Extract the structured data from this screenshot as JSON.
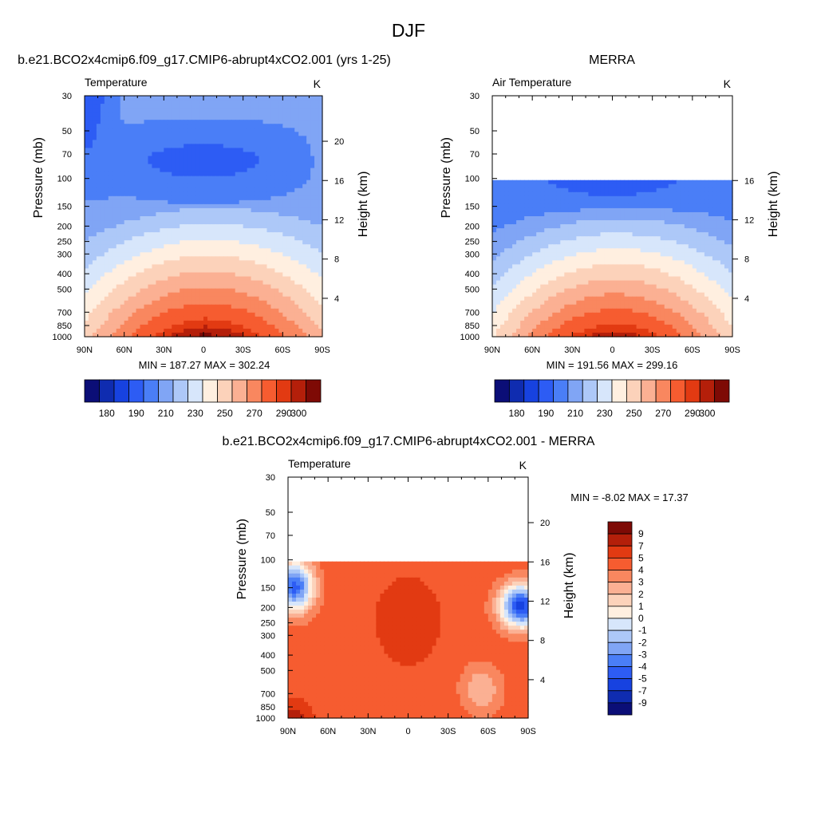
{
  "figure_title": "DJF",
  "colors": {
    "temperature_scale": [
      "#0b0e77",
      "#0f2cb0",
      "#1742e0",
      "#2d5cf4",
      "#4a7ef7",
      "#80a5f5",
      "#adc8f8",
      "#d7e6fb",
      "#ffefe0",
      "#fcd2ba",
      "#fbb093",
      "#f9875f",
      "#f65c30",
      "#e23a12",
      "#b41f0a",
      "#7e0a05"
    ],
    "difference_scale": [
      "#0b0e77",
      "#0f2cb0",
      "#1742e0",
      "#2d5cf4",
      "#4a7ef7",
      "#80a5f5",
      "#adc8f8",
      "#d7e6fb",
      "#ffefe0",
      "#fcd2ba",
      "#fbb093",
      "#f9875f",
      "#f65c30",
      "#e23a12",
      "#b41f0a",
      "#7e0a05"
    ]
  },
  "chart_data": [
    {
      "id": "model",
      "type": "heatmap",
      "title": "b.e21.BCO2x4cmip6.f09_g17.CMIP6-abrupt4xCO2.001 (yrs 1-25)",
      "left_string": "Temperature",
      "right_string": "K",
      "xlabel": "",
      "ylabel": "Pressure (mb)",
      "ylabel_right": "Height (km)",
      "x_ticks": [
        "90N",
        "60N",
        "30N",
        "0",
        "30S",
        "60S",
        "90S"
      ],
      "x_values": [
        90,
        60,
        30,
        0,
        -30,
        -60,
        -90
      ],
      "y_ticks": [
        "30",
        "50",
        "70",
        "100",
        "150",
        "200",
        "250",
        "300",
        "400",
        "500",
        "700",
        "850",
        "1000"
      ],
      "y_values": [
        30,
        50,
        70,
        100,
        150,
        200,
        250,
        300,
        400,
        500,
        700,
        850,
        1000
      ],
      "height_ticks": [
        "20",
        "16",
        "12",
        "8",
        "4"
      ],
      "height_values": [
        20,
        16,
        12,
        8,
        4
      ],
      "ylim": [
        30,
        1000
      ],
      "data_top": 30,
      "min_max": "MIN = 187.27  MAX = 302.24",
      "min": 187.27,
      "max": 302.24,
      "colorbar_labels": [
        "180",
        "190",
        "210",
        "230",
        "250",
        "270",
        "290",
        "300"
      ],
      "levels": [
        180,
        185,
        190,
        200,
        210,
        220,
        230,
        240,
        250,
        260,
        270,
        280,
        290,
        295,
        300
      ],
      "field": "model"
    },
    {
      "id": "obs",
      "type": "heatmap",
      "title": "MERRA",
      "left_string": "Air Temperature",
      "right_string": "K",
      "xlabel": "",
      "ylabel": "Pressure (mb)",
      "ylabel_right": "Height (km)",
      "x_ticks": [
        "90N",
        "60N",
        "30N",
        "0",
        "30S",
        "60S",
        "90S"
      ],
      "x_values": [
        90,
        60,
        30,
        0,
        -30,
        -60,
        -90
      ],
      "y_ticks": [
        "30",
        "50",
        "70",
        "100",
        "150",
        "200",
        "250",
        "300",
        "400",
        "500",
        "700",
        "850",
        "1000"
      ],
      "y_values": [
        30,
        50,
        70,
        100,
        150,
        200,
        250,
        300,
        400,
        500,
        700,
        850,
        1000
      ],
      "height_ticks": [
        "16",
        "12",
        "8",
        "4"
      ],
      "height_values": [
        16,
        12,
        8,
        4
      ],
      "ylim": [
        30,
        1000
      ],
      "data_top": 100,
      "min_max": "MIN = 191.56  MAX = 299.16",
      "min": 191.56,
      "max": 299.16,
      "colorbar_labels": [
        "180",
        "190",
        "210",
        "230",
        "250",
        "270",
        "290",
        "300"
      ],
      "levels": [
        180,
        185,
        190,
        200,
        210,
        220,
        230,
        240,
        250,
        260,
        270,
        280,
        290,
        295,
        300
      ],
      "field": "obs"
    },
    {
      "id": "diff",
      "type": "heatmap",
      "title": "b.e21.BCO2x4cmip6.f09_g17.CMIP6-abrupt4xCO2.001 - MERRA",
      "left_string": "Temperature",
      "right_string": "K",
      "xlabel": "",
      "ylabel": "Pressure (mb)",
      "ylabel_right": "Height (km)",
      "x_ticks": [
        "90N",
        "60N",
        "30N",
        "0",
        "30S",
        "60S",
        "90S"
      ],
      "x_values": [
        90,
        60,
        30,
        0,
        -30,
        -60,
        -90
      ],
      "y_ticks": [
        "30",
        "50",
        "70",
        "100",
        "150",
        "200",
        "250",
        "300",
        "400",
        "500",
        "700",
        "850",
        "1000"
      ],
      "y_values": [
        30,
        50,
        70,
        100,
        150,
        200,
        250,
        300,
        400,
        500,
        700,
        850,
        1000
      ],
      "height_ticks": [
        "20",
        "16",
        "12",
        "8",
        "4"
      ],
      "height_values": [
        20,
        16,
        12,
        8,
        4
      ],
      "ylim": [
        30,
        1000
      ],
      "data_top": 100,
      "min_max": "MIN =  -8.02  MAX =  17.37",
      "min": -8.02,
      "max": 17.37,
      "colorbar_labels": [
        "9",
        "7",
        "5",
        "4",
        "3",
        "2",
        "1",
        "0",
        "-1",
        "-2",
        "-3",
        "-4",
        "-5",
        "-7",
        "-9"
      ],
      "levels": [
        -9,
        -7,
        -5,
        -4,
        -3,
        -2,
        -1,
        0,
        1,
        2,
        3,
        4,
        5,
        7,
        9
      ],
      "field": "diff"
    }
  ]
}
